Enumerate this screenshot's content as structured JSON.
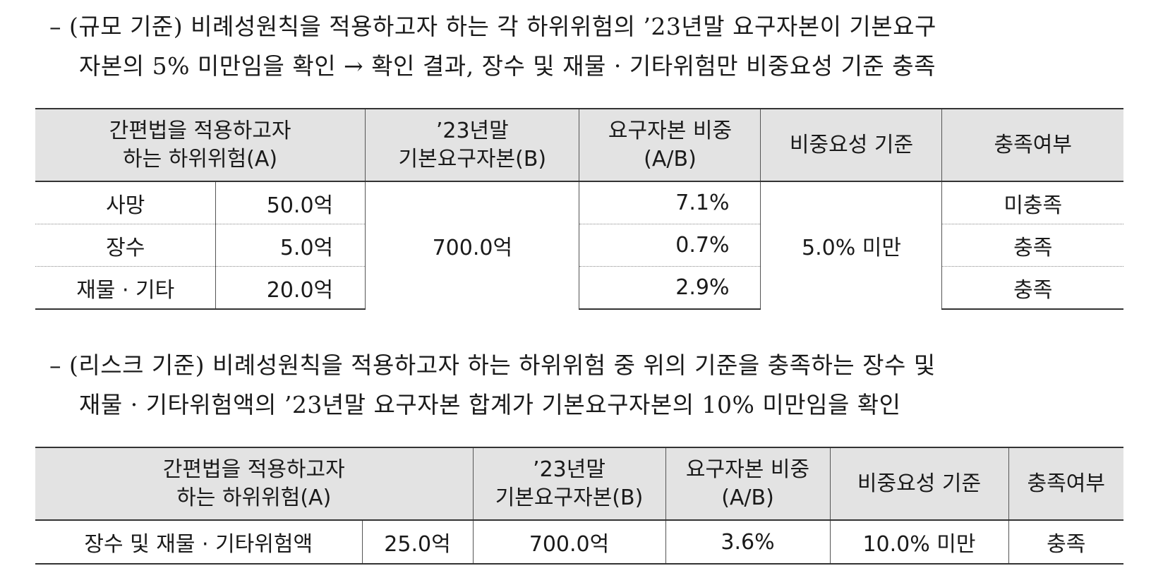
{
  "section1": {
    "line1": "– (규모 기준) 비례성원칙을 적용하고자 하는 각 하위위험의 ’23년말 요구자본이 기본요구",
    "line2": "자본의 5% 미만임을 확인 → 확인 결과, 장수 및 재물 · 기타위험만 비중요성 기준 충족"
  },
  "table1": {
    "headers": {
      "subrisk_line1": "간편법을 적용하고자",
      "subrisk_line2": "하는 하위위험(A)",
      "basic_line1": "’23년말",
      "basic_line2": "기본요구자본(B)",
      "ratio_line1": "요구자본 비중",
      "ratio_line2": "(A/B)",
      "criterion": "비중요성 기준",
      "met": "충족여부"
    },
    "basic_capital": "700.0억",
    "criterion_value": "5.0% 미만",
    "rows": [
      {
        "name": "사망",
        "amount": "50.0억",
        "ratio": "7.1%",
        "met": "미충족"
      },
      {
        "name": "장수",
        "amount": "5.0억",
        "ratio": "0.7%",
        "met": "충족"
      },
      {
        "name": "재물 · 기타",
        "amount": "20.0억",
        "ratio": "2.9%",
        "met": "충족"
      }
    ]
  },
  "section2": {
    "line1": "– (리스크 기준) 비례성원칙을 적용하고자 하는 하위위험 중 위의 기준을 충족하는 장수 및",
    "line2": "재물 · 기타위험액의 ’23년말 요구자본 합계가 기본요구자본의 10% 미만임을 확인"
  },
  "table2": {
    "headers": {
      "subrisk_line1": "간편법을 적용하고자",
      "subrisk_line2": "하는 하위위험(A)",
      "basic_line1": "’23년말",
      "basic_line2": "기본요구자본(B)",
      "ratio_line1": "요구자본 비중",
      "ratio_line2": "(A/B)",
      "criterion": "비중요성 기준",
      "met": "충족여부"
    },
    "row": {
      "name": "장수 및 재물 · 기타위험액",
      "amount": "25.0억",
      "basic": "700.0억",
      "ratio": "3.6%",
      "criterion": "10.0% 미만",
      "met": "충족"
    }
  }
}
